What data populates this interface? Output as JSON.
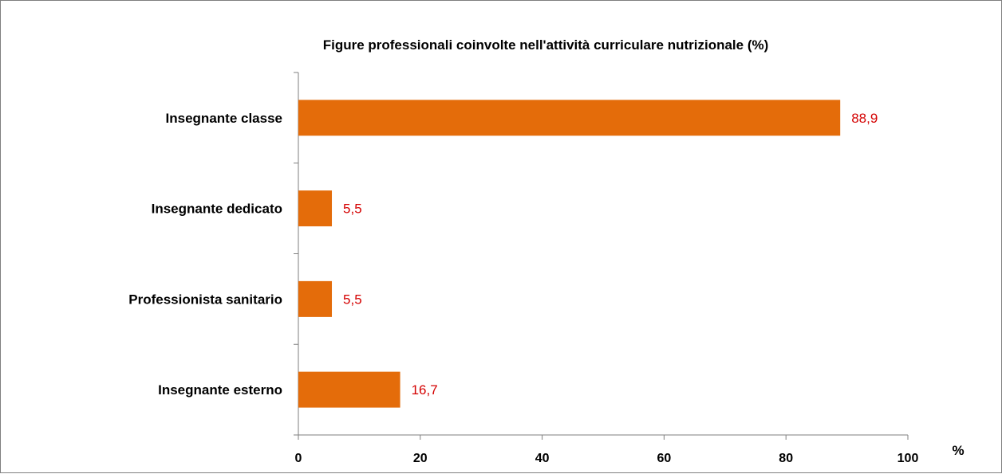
{
  "chart_data": {
    "type": "bar",
    "orientation": "horizontal",
    "title": "Figure professionali coinvolte nell'attività curriculare nutrizionale (%)",
    "categories": [
      "Insegnante classe",
      "Insegnante dedicato",
      "Professionista sanitario",
      "Insegnante esterno"
    ],
    "values": [
      88.9,
      5.5,
      5.5,
      16.7
    ],
    "data_labels": [
      "88,9",
      "5,5",
      "5,5",
      "16,7"
    ],
    "xlabel": "%",
    "ylabel": "",
    "xlim": [
      0,
      100
    ],
    "x_ticks": [
      0,
      20,
      40,
      60,
      80,
      100
    ],
    "x_tick_labels": [
      "0",
      "20",
      "40",
      "60",
      "80",
      "100"
    ],
    "grid": false,
    "legend": "none",
    "bar_color": "#e46c0a",
    "label_color": "#d40000",
    "axis_color": "#7f7f7f"
  }
}
